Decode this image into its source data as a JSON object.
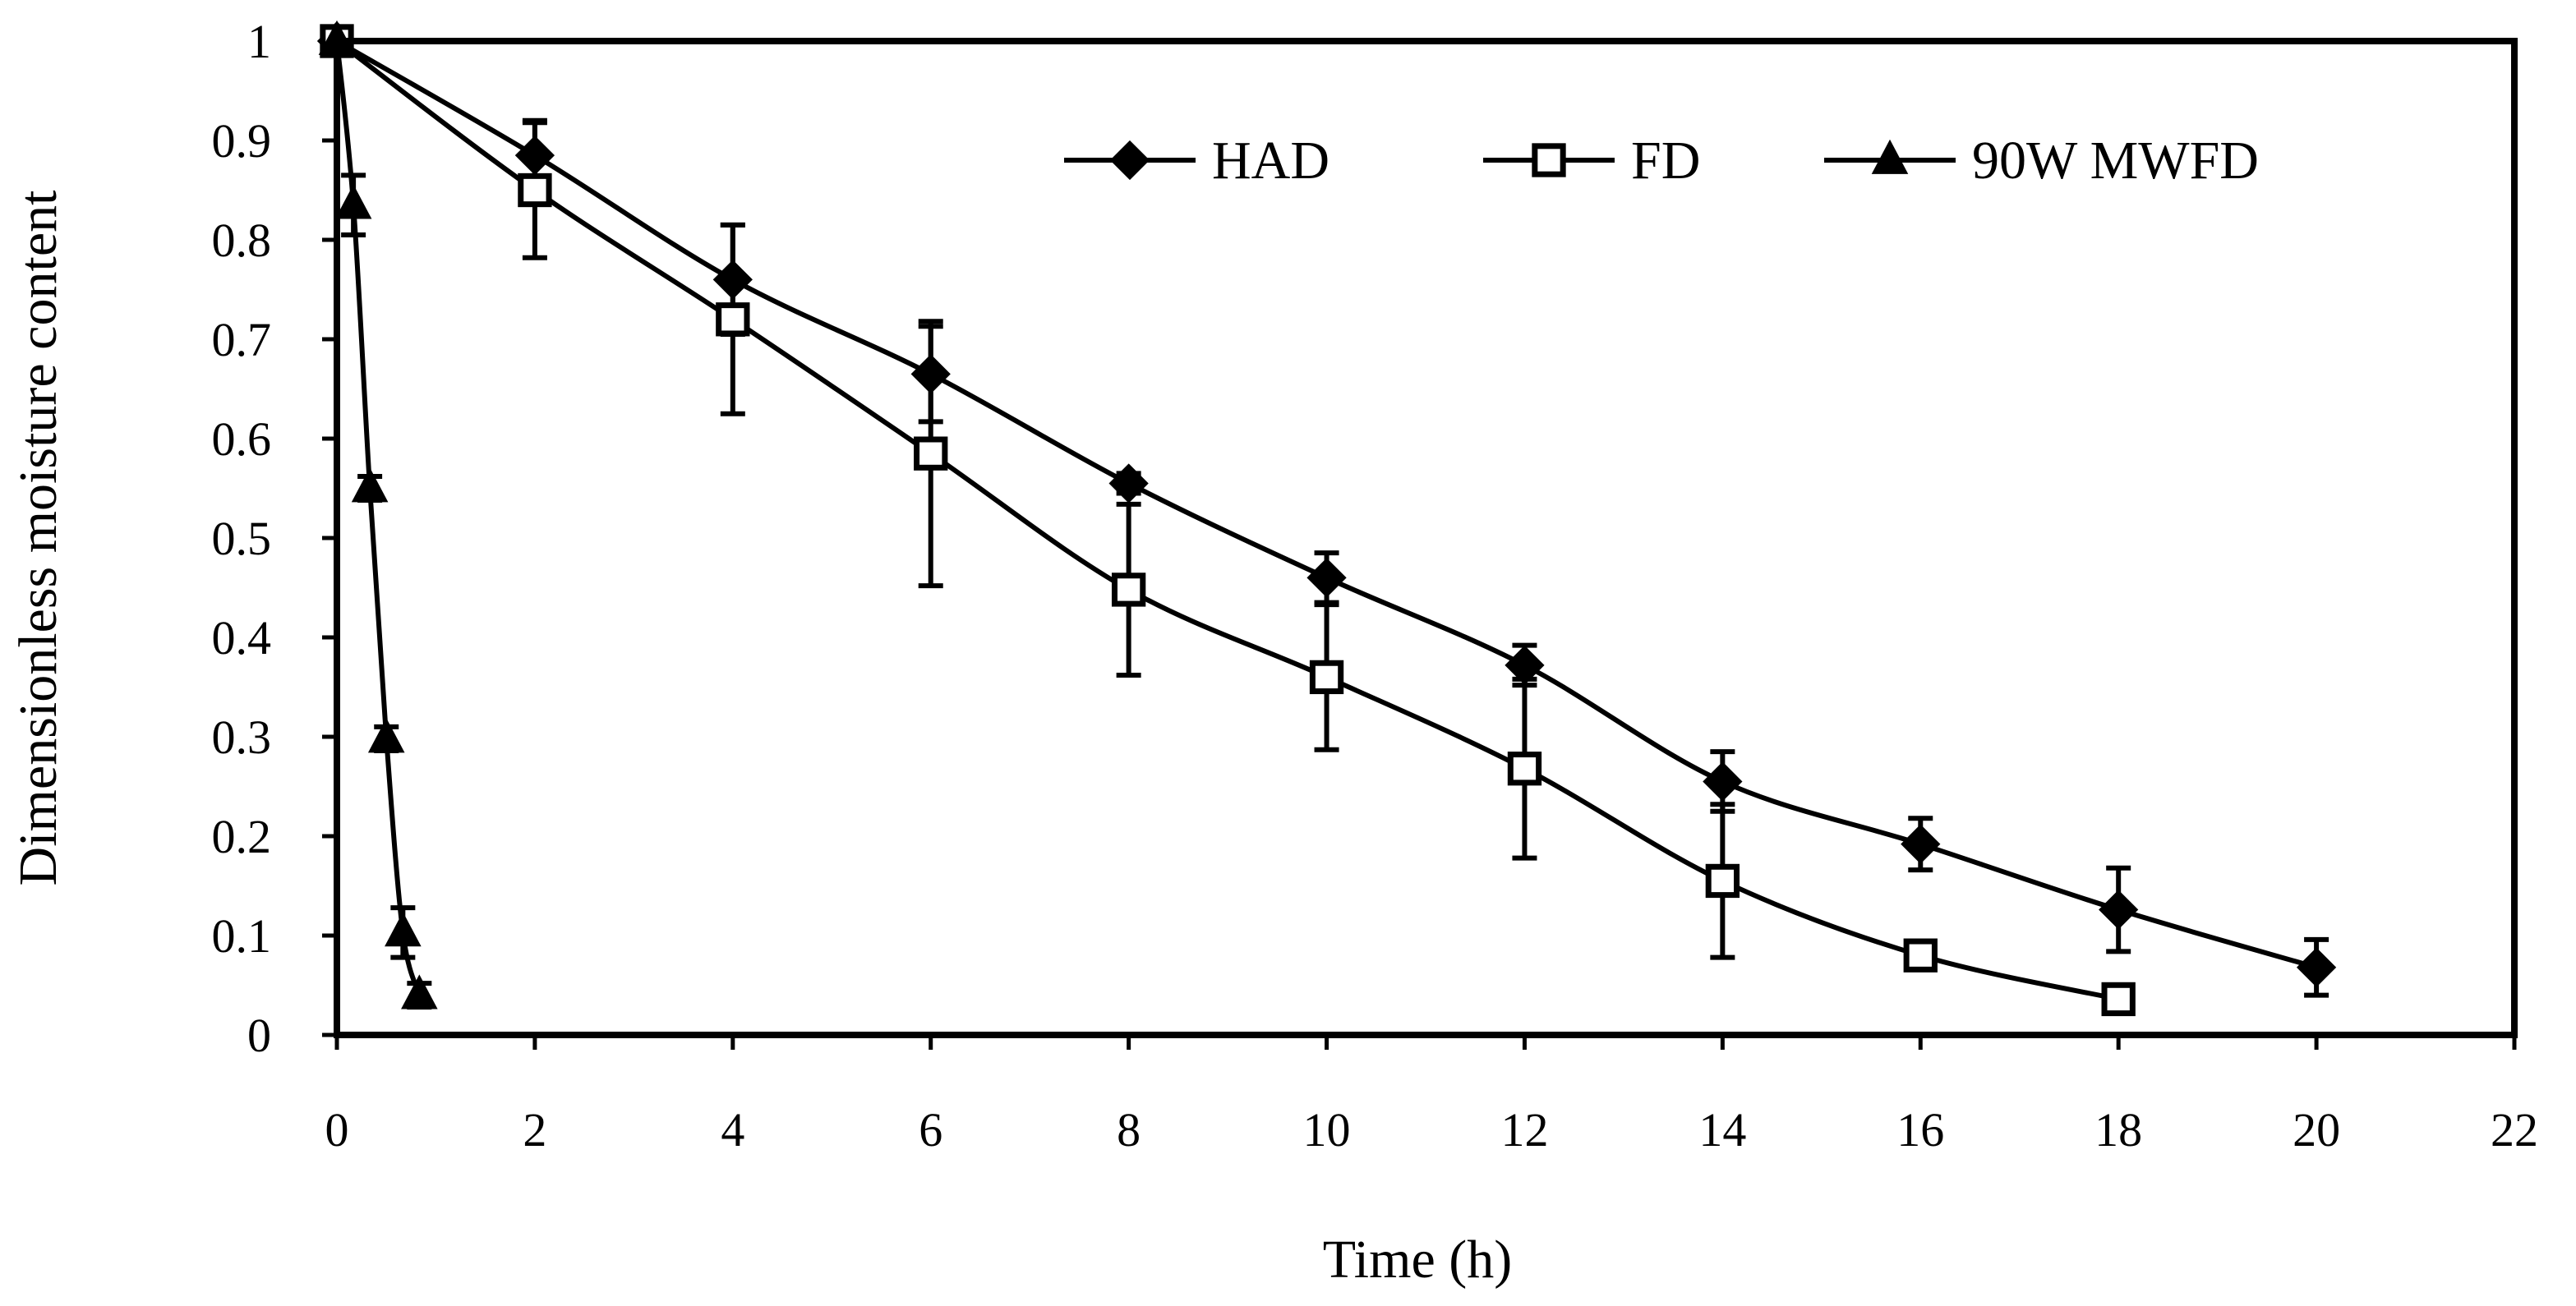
{
  "chart_data": {
    "type": "line",
    "title": "",
    "xlabel": "Time (h)",
    "ylabel": "Dimensionless moisture content",
    "xlim": [
      0,
      22
    ],
    "ylim": [
      0,
      1
    ],
    "x_ticks": [
      0,
      2,
      4,
      6,
      8,
      10,
      12,
      14,
      16,
      18,
      20,
      22
    ],
    "y_ticks": [
      0,
      0.1,
      0.2,
      0.3,
      0.4,
      0.5,
      0.6,
      0.7,
      0.8,
      0.9,
      1
    ],
    "x_tick_labels": [
      "0",
      "2",
      "4",
      "6",
      "8",
      "10",
      "12",
      "14",
      "16",
      "18",
      "20",
      "22"
    ],
    "y_tick_labels": [
      "0",
      "0.1",
      "0.2",
      "0.3",
      "0.4",
      "0.5",
      "0.6",
      "0.7",
      "0.8",
      "0.9",
      "1"
    ],
    "grid": false,
    "legend_position": "top-right",
    "series": [
      {
        "name": "HAD",
        "marker": "diamond-filled",
        "x": [
          0,
          2,
          4,
          6,
          8,
          10,
          12,
          14,
          16,
          18,
          20
        ],
        "y": [
          1.0,
          0.885,
          0.76,
          0.665,
          0.555,
          0.46,
          0.372,
          0.255,
          0.192,
          0.126,
          0.068
        ],
        "error": [
          0,
          0.035,
          0.055,
          0.048,
          0.01,
          0.025,
          0.02,
          0.03,
          0.026,
          0.042,
          0.028
        ]
      },
      {
        "name": "FD",
        "marker": "square-open",
        "x": [
          0,
          2,
          4,
          6,
          8,
          10,
          12,
          14,
          16,
          18
        ],
        "y": [
          1.0,
          0.85,
          0.72,
          0.585,
          0.448,
          0.36,
          0.268,
          0.155,
          0.08,
          0.036
        ],
        "error": [
          0,
          0.068,
          0.095,
          0.133,
          0.086,
          0.073,
          0.09,
          0.077,
          0,
          0
        ]
      },
      {
        "name": "90W MWFD",
        "marker": "triangle-filled",
        "x": [
          0,
          0.167,
          0.333,
          0.5,
          0.667,
          0.833
        ],
        "y": [
          1.0,
          0.835,
          0.55,
          0.298,
          0.103,
          0.04
        ],
        "error": [
          0,
          0.03,
          0.012,
          0.012,
          0.025,
          0.012
        ]
      }
    ]
  }
}
